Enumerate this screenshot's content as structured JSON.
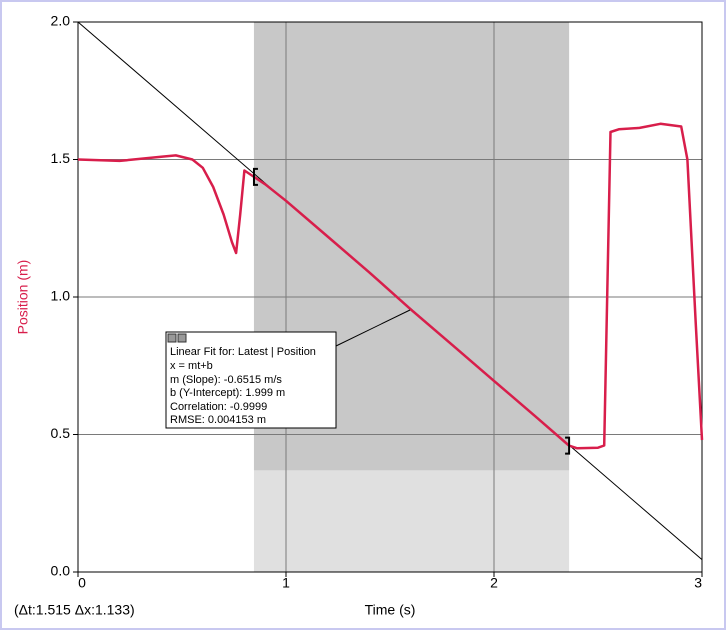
{
  "chart_data": {
    "type": "line",
    "x_label": "Time (s)",
    "y_label": "Position (m)",
    "x": [
      0,
      0.2,
      0.4,
      0.47,
      0.55,
      0.6,
      0.65,
      0.7,
      0.74,
      0.76,
      0.78,
      0.8,
      0.84,
      0.9,
      1.0,
      1.2,
      1.4,
      1.6,
      1.8,
      2.0,
      2.2,
      2.36,
      2.4,
      2.5,
      2.53,
      2.56,
      2.6,
      2.7,
      2.8,
      2.9,
      2.93,
      2.95,
      2.97,
      3.0
    ],
    "series": [
      {
        "name": "Position",
        "color": "#d81e4b",
        "values": [
          1.5,
          1.495,
          1.51,
          1.515,
          1.5,
          1.47,
          1.4,
          1.3,
          1.2,
          1.16,
          1.3,
          1.46,
          1.44,
          1.41,
          1.35,
          1.22,
          1.09,
          0.955,
          0.825,
          0.695,
          0.565,
          0.46,
          0.45,
          0.452,
          0.46,
          1.6,
          1.61,
          1.615,
          1.63,
          1.62,
          1.5,
          1.2,
          0.9,
          0.48
        ]
      }
    ],
    "fit": {
      "x": [
        0,
        3
      ],
      "values": [
        2.0,
        0.045
      ],
      "color": "#000000"
    },
    "selection": [
      0.846,
      2.361
    ],
    "selection_ylim": [
      0.37,
      2.0
    ],
    "xlim": [
      0,
      3
    ],
    "ylim": [
      0,
      2
    ],
    "xticks": [
      0,
      1,
      2,
      3
    ],
    "yticks": [
      {
        "value": 0,
        "label": "0.0"
      },
      0.5,
      {
        "value": 1,
        "label": "1.0"
      },
      1.5,
      {
        "value": 2,
        "label": "2.0"
      }
    ],
    "grid": true,
    "delta_text": "(Δt:1.515 Δx:1.133)",
    "fit_box": [
      "Linear Fit for: Latest | Position",
      "x = mt+b",
      "m (Slope): -0.6515 m/s",
      "b (Y-Intercept): 1.999 m",
      "Correlation: -0.9999",
      "RMSE: 0.004153 m"
    ]
  }
}
